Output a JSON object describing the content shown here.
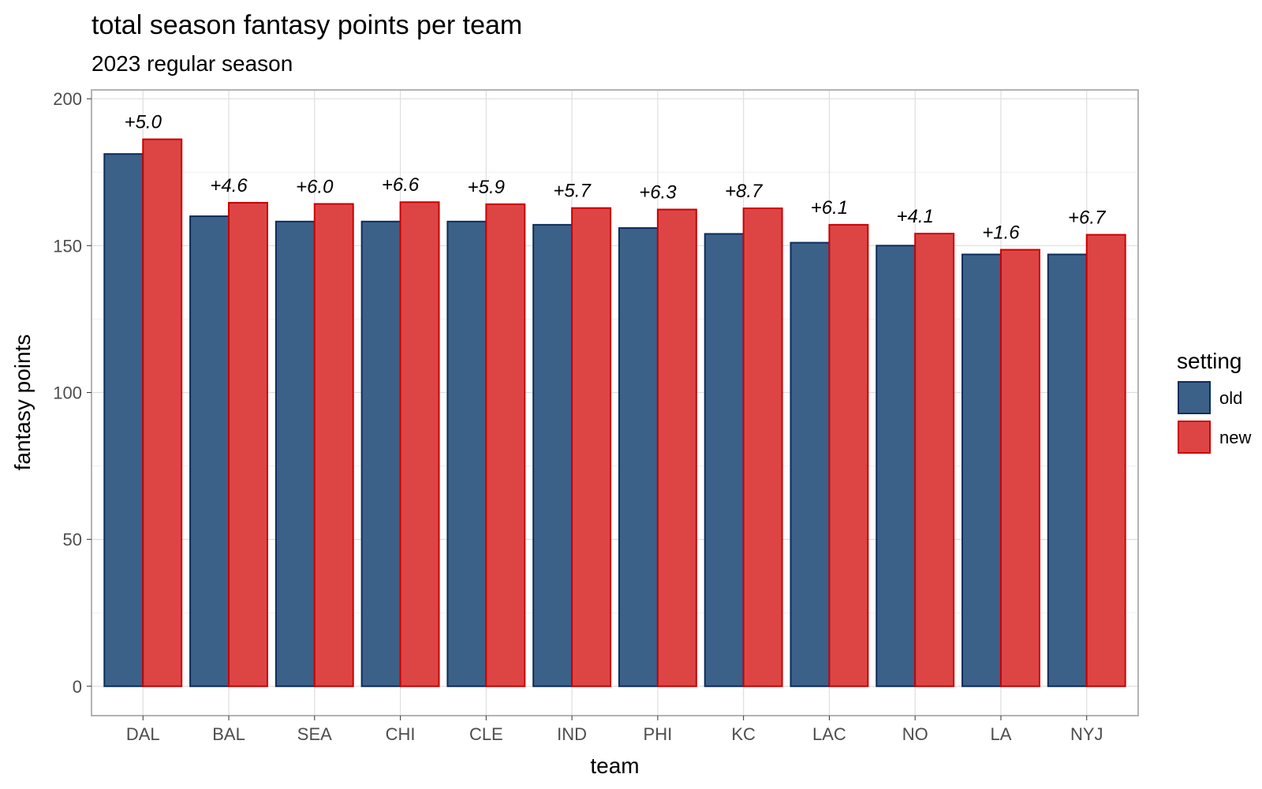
{
  "chart_data": {
    "type": "bar",
    "title": "total season fantasy points per team",
    "subtitle": "2023 regular season",
    "xlabel": "team",
    "ylabel": "fantasy points",
    "ylim": [
      -10,
      203
    ],
    "yticks": [
      0,
      50,
      100,
      150,
      200
    ],
    "yticklabels": [
      "0",
      "50",
      "100",
      "150",
      "200"
    ],
    "grid": true,
    "legend": {
      "title": "setting",
      "position": "right"
    },
    "categories": [
      "DAL",
      "BAL",
      "SEA",
      "CHI",
      "CLE",
      "IND",
      "PHI",
      "KC",
      "LAC",
      "NO",
      "LA",
      "NYJ"
    ],
    "series": [
      {
        "name": "old",
        "fill": "#3c6189",
        "stroke": "#0d2d5b",
        "values": [
          181.2,
          160.0,
          158.2,
          158.2,
          158.2,
          157.1,
          156.0,
          154.0,
          151.0,
          150.0,
          147.0,
          147.0
        ]
      },
      {
        "name": "new",
        "fill": "#dd4545",
        "stroke": "#cc0000",
        "values": [
          186.2,
          164.6,
          164.2,
          164.8,
          164.1,
          162.8,
          162.3,
          162.7,
          157.1,
          154.1,
          148.6,
          153.7
        ]
      }
    ],
    "annotations": [
      "+5.0",
      "+4.6",
      "+6.0",
      "+6.6",
      "+5.9",
      "+5.7",
      "+6.3",
      "+8.7",
      "+6.1",
      "+4.1",
      "+1.6",
      "+6.7"
    ]
  }
}
